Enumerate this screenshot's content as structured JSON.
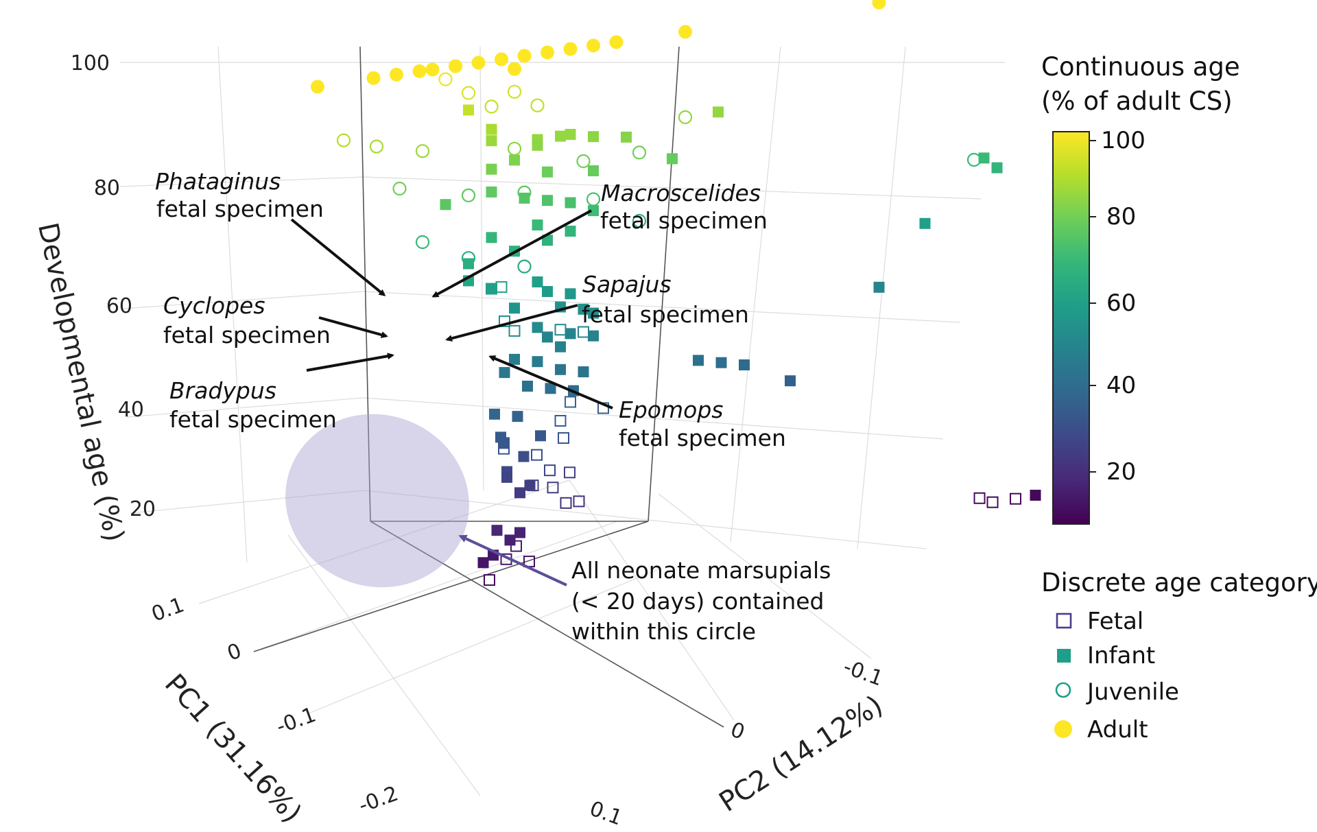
{
  "chart_data": {
    "type": "scatter",
    "dimensions": "3d",
    "zlabel": "Developmental age (%)",
    "xlabel": "PC1 (31.16%)",
    "ylabel": "PC2 (14.12%)",
    "z_ticks": [
      "100",
      "80",
      "60",
      "40",
      "20"
    ],
    "pc1_ticks": [
      "0.1",
      "0",
      "-0.1",
      "-0.2"
    ],
    "pc2_ticks": [
      "-0.1",
      "0",
      "0.1"
    ],
    "colorbar": {
      "title_line1": "Continuous age",
      "title_line2": "(% of adult CS)",
      "ticks": [
        "100",
        "80",
        "60",
        "40",
        "20"
      ],
      "palette": [
        "#440154",
        "#482878",
        "#3e4989",
        "#31688e",
        "#26828e",
        "#1f9e89",
        "#35b779",
        "#6ece58",
        "#b5de2b",
        "#fde725"
      ]
    },
    "legend": {
      "title": "Discrete age category",
      "items": [
        {
          "label": "Fetal",
          "marker": "open-square"
        },
        {
          "label": "Infant",
          "marker": "filled-square"
        },
        {
          "label": "Juvenile",
          "marker": "open-circle"
        },
        {
          "label": "Adult",
          "marker": "filled-circle"
        }
      ]
    },
    "annotations": [
      {
        "genus": "Phataginus",
        "text": "fetal specimen"
      },
      {
        "genus": "Macroscelides",
        "text": "fetal specimen"
      },
      {
        "genus": "Cyclopes",
        "text": "fetal specimen"
      },
      {
        "genus": "Sapajus",
        "text": "fetal specimen"
      },
      {
        "genus": "Bradypus",
        "text": "fetal specimen"
      },
      {
        "genus": "Epomops",
        "text": "fetal specimen"
      }
    ],
    "marsupial_note": [
      "All neonate marsupials",
      "(< 20 days) contained",
      "within this circle"
    ],
    "points": [
      {
        "c": "adult",
        "age": 100,
        "pc1": -0.02,
        "pc2": -0.14
      },
      {
        "c": "adult",
        "age": 100,
        "pc1": -0.05,
        "pc2": -0.12
      },
      {
        "c": "adult",
        "age": 100,
        "pc1": -0.06,
        "pc2": -0.11
      },
      {
        "c": "adult",
        "age": 100,
        "pc1": -0.07,
        "pc2": -0.1
      },
      {
        "c": "adult",
        "age": 100,
        "pc1": -0.07,
        "pc2": -0.09
      },
      {
        "c": "adult",
        "age": 100,
        "pc1": -0.08,
        "pc2": -0.08
      },
      {
        "c": "adult",
        "age": 100,
        "pc1": -0.08,
        "pc2": -0.08
      },
      {
        "c": "adult",
        "age": 100,
        "pc1": -0.09,
        "pc2": -0.07
      },
      {
        "c": "adult",
        "age": 100,
        "pc1": -0.1,
        "pc2": -0.06
      },
      {
        "c": "adult",
        "age": 100,
        "pc1": -0.11,
        "pc2": -0.05
      },
      {
        "c": "adult",
        "age": 100,
        "pc1": -0.11,
        "pc2": -0.05
      },
      {
        "c": "adult",
        "age": 100,
        "pc1": -0.12,
        "pc2": -0.04
      },
      {
        "c": "adult",
        "age": 100,
        "pc1": -0.13,
        "pc2": -0.03
      },
      {
        "c": "adult",
        "age": 100,
        "pc1": -0.14,
        "pc2": -0.02
      },
      {
        "c": "adult",
        "age": 100,
        "pc1": -0.15,
        "pc2": -0.01
      },
      {
        "c": "adult",
        "age": 100,
        "pc1": -0.18,
        "pc2": 0.02
      },
      {
        "c": "adult",
        "age": 100,
        "pc1": -0.27,
        "pc2": 0.1
      },
      {
        "c": "adult",
        "age": 98,
        "pc1": -0.1,
        "pc2": -0.05
      },
      {
        "c": "juvenile",
        "age": 98,
        "pc1": -0.07,
        "pc2": -0.08
      },
      {
        "c": "juvenile",
        "age": 95,
        "pc1": -0.08,
        "pc2": -0.07
      },
      {
        "c": "juvenile",
        "age": 94,
        "pc1": -0.1,
        "pc2": -0.05
      },
      {
        "c": "juvenile",
        "age": 92,
        "pc1": -0.09,
        "pc2": -0.06
      },
      {
        "c": "juvenile",
        "age": 91,
        "pc1": -0.11,
        "pc2": -0.04
      },
      {
        "c": "juvenile",
        "age": 90,
        "pc1": -0.02,
        "pc2": -0.12
      },
      {
        "c": "juvenile",
        "age": 88,
        "pc1": -0.04,
        "pc2": -0.11
      },
      {
        "c": "juvenile",
        "age": 86,
        "pc1": -0.06,
        "pc2": -0.09
      },
      {
        "c": "juvenile",
        "age": 85,
        "pc1": -0.18,
        "pc2": 0.02
      },
      {
        "c": "juvenile",
        "age": 84,
        "pc1": -0.1,
        "pc2": -0.05
      },
      {
        "c": "juvenile",
        "age": 80,
        "pc1": -0.13,
        "pc2": -0.02
      },
      {
        "c": "juvenile",
        "age": 80,
        "pc1": -0.16,
        "pc2": 0.0
      },
      {
        "c": "juvenile",
        "age": 80,
        "pc1": -0.05,
        "pc2": -0.1
      },
      {
        "c": "juvenile",
        "age": 77,
        "pc1": -0.08,
        "pc2": -0.07
      },
      {
        "c": "juvenile",
        "age": 76,
        "pc1": -0.11,
        "pc2": -0.05
      },
      {
        "c": "juvenile",
        "age": 73,
        "pc1": -0.14,
        "pc2": -0.02
      },
      {
        "c": "juvenile",
        "age": 70,
        "pc1": -0.06,
        "pc2": -0.09
      },
      {
        "c": "juvenile",
        "age": 68,
        "pc1": -0.16,
        "pc2": 0.0
      },
      {
        "c": "juvenile",
        "age": 66,
        "pc1": -0.08,
        "pc2": -0.07
      },
      {
        "c": "juvenile",
        "age": 63,
        "pc1": -0.11,
        "pc2": -0.05
      },
      {
        "c": "juvenile",
        "age": 70,
        "pc1": -0.3,
        "pc2": 0.15
      },
      {
        "c": "infant",
        "age": 92,
        "pc1": -0.08,
        "pc2": -0.07
      },
      {
        "c": "infant",
        "age": 88,
        "pc1": -0.09,
        "pc2": -0.06
      },
      {
        "c": "infant",
        "age": 85,
        "pc1": -0.11,
        "pc2": -0.04
      },
      {
        "c": "infant",
        "age": 84,
        "pc1": -0.11,
        "pc2": -0.04
      },
      {
        "c": "infant",
        "age": 85,
        "pc1": -0.13,
        "pc2": -0.03
      },
      {
        "c": "infant",
        "age": 85,
        "pc1": -0.12,
        "pc2": -0.03
      },
      {
        "c": "infant",
        "age": 84,
        "pc1": -0.14,
        "pc2": -0.02
      },
      {
        "c": "infant",
        "age": 86,
        "pc1": -0.09,
        "pc2": -0.06
      },
      {
        "c": "infant",
        "age": 83,
        "pc1": -0.16,
        "pc2": -0.01
      },
      {
        "c": "infant",
        "age": 85,
        "pc1": -0.2,
        "pc2": 0.03
      },
      {
        "c": "infant",
        "age": 82,
        "pc1": -0.1,
        "pc2": -0.05
      },
      {
        "c": "infant",
        "age": 81,
        "pc1": -0.09,
        "pc2": -0.06
      },
      {
        "c": "infant",
        "age": 79,
        "pc1": -0.12,
        "pc2": -0.04
      },
      {
        "c": "infant",
        "age": 78,
        "pc1": -0.14,
        "pc2": -0.02
      },
      {
        "c": "infant",
        "age": 78,
        "pc1": -0.18,
        "pc2": 0.01
      },
      {
        "c": "infant",
        "age": 77,
        "pc1": -0.09,
        "pc2": -0.06
      },
      {
        "c": "infant",
        "age": 76,
        "pc1": -0.07,
        "pc2": -0.08
      },
      {
        "c": "infant",
        "age": 75,
        "pc1": -0.11,
        "pc2": -0.05
      },
      {
        "c": "infant",
        "age": 74,
        "pc1": -0.12,
        "pc2": -0.04
      },
      {
        "c": "infant",
        "age": 73,
        "pc1": -0.13,
        "pc2": -0.03
      },
      {
        "c": "infant",
        "age": 71,
        "pc1": -0.14,
        "pc2": -0.02
      },
      {
        "c": "infant",
        "age": 70,
        "pc1": -0.11,
        "pc2": -0.04
      },
      {
        "c": "infant",
        "age": 69,
        "pc1": -0.09,
        "pc2": -0.06
      },
      {
        "c": "infant",
        "age": 68,
        "pc1": -0.13,
        "pc2": -0.03
      },
      {
        "c": "infant",
        "age": 67,
        "pc1": -0.12,
        "pc2": -0.04
      },
      {
        "c": "infant",
        "age": 66,
        "pc1": -0.1,
        "pc2": -0.05
      },
      {
        "c": "infant",
        "age": 65,
        "pc1": -0.08,
        "pc2": -0.07
      },
      {
        "c": "infant",
        "age": 70,
        "pc1": -0.31,
        "pc2": 0.15
      },
      {
        "c": "infant",
        "age": 68,
        "pc1": -0.31,
        "pc2": 0.16
      },
      {
        "c": "infant",
        "age": 60,
        "pc1": -0.29,
        "pc2": 0.12
      },
      {
        "c": "infant",
        "age": 50,
        "pc1": -0.27,
        "pc2": 0.1
      },
      {
        "c": "infant",
        "age": 62,
        "pc1": -0.08,
        "pc2": -0.07
      },
      {
        "c": "infant",
        "age": 60,
        "pc1": -0.09,
        "pc2": -0.06
      },
      {
        "c": "infant",
        "age": 60,
        "pc1": -0.11,
        "pc2": -0.04
      },
      {
        "c": "infant",
        "age": 58,
        "pc1": -0.12,
        "pc2": -0.04
      },
      {
        "c": "infant",
        "age": 57,
        "pc1": -0.13,
        "pc2": -0.03
      },
      {
        "c": "infant",
        "age": 56,
        "pc1": -0.1,
        "pc2": -0.05
      },
      {
        "c": "infant",
        "age": 55,
        "pc1": -0.12,
        "pc2": -0.03
      },
      {
        "c": "infant",
        "age": 54,
        "pc1": -0.13,
        "pc2": -0.02
      },
      {
        "c": "infant",
        "age": 53,
        "pc1": -0.14,
        "pc2": -0.02
      },
      {
        "c": "infant",
        "age": 52,
        "pc1": -0.11,
        "pc2": -0.04
      },
      {
        "c": "infant",
        "age": 50,
        "pc1": -0.12,
        "pc2": -0.04
      },
      {
        "c": "infant",
        "age": 50,
        "pc1": -0.13,
        "pc2": -0.03
      },
      {
        "c": "infant",
        "age": 49,
        "pc1": -0.14,
        "pc2": -0.02
      },
      {
        "c": "infant",
        "age": 48,
        "pc1": -0.12,
        "pc2": -0.03
      },
      {
        "c": "infant",
        "age": 47,
        "pc1": -0.1,
        "pc2": -0.05
      },
      {
        "c": "infant",
        "age": 46,
        "pc1": -0.11,
        "pc2": -0.04
      },
      {
        "c": "infant",
        "age": 45,
        "pc1": -0.09,
        "pc2": -0.05
      },
      {
        "c": "infant",
        "age": 44,
        "pc1": -0.12,
        "pc2": -0.03
      },
      {
        "c": "infant",
        "age": 43,
        "pc1": -0.13,
        "pc2": -0.02
      },
      {
        "c": "infant",
        "age": 42,
        "pc1": -0.1,
        "pc2": -0.04
      },
      {
        "c": "infant",
        "age": 41,
        "pc1": -0.11,
        "pc2": -0.03
      },
      {
        "c": "infant",
        "age": 40,
        "pc1": -0.12,
        "pc2": -0.02
      },
      {
        "c": "infant",
        "age": 42,
        "pc1": -0.18,
        "pc2": 0.03
      },
      {
        "c": "infant",
        "age": 41,
        "pc1": -0.19,
        "pc2": 0.04
      },
      {
        "c": "infant",
        "age": 40,
        "pc1": -0.2,
        "pc2": 0.05
      },
      {
        "c": "infant",
        "age": 36,
        "pc1": -0.22,
        "pc2": 0.07
      },
      {
        "c": "infant",
        "age": 38,
        "pc1": -0.08,
        "pc2": -0.05
      },
      {
        "c": "infant",
        "age": 37,
        "pc1": -0.09,
        "pc2": -0.04
      },
      {
        "c": "infant",
        "age": 34,
        "pc1": -0.06,
        "pc2": -0.03
      },
      {
        "c": "infant",
        "age": 33,
        "pc1": -0.1,
        "pc2": -0.03
      },
      {
        "c": "infant",
        "age": 33,
        "pc1": -0.05,
        "pc2": -0.02
      },
      {
        "c": "infant",
        "age": 30,
        "pc1": -0.07,
        "pc2": -0.02
      },
      {
        "c": "infant",
        "age": 28,
        "pc1": -0.04,
        "pc2": -0.01
      },
      {
        "c": "infant",
        "age": 27,
        "pc1": -0.04,
        "pc2": -0.01
      },
      {
        "c": "infant",
        "age": 25,
        "pc1": -0.05,
        "pc2": 0.0
      },
      {
        "c": "infant",
        "age": 24,
        "pc1": -0.04,
        "pc2": 0.0
      },
      {
        "c": "infant",
        "age": 14,
        "pc1": 0.0,
        "pc2": 0.01
      },
      {
        "c": "infant",
        "age": 13,
        "pc1": 0.01,
        "pc2": 0.01
      },
      {
        "c": "infant",
        "age": 18,
        "pc1": -0.03,
        "pc2": -0.01
      },
      {
        "c": "infant",
        "age": 17,
        "pc1": -0.04,
        "pc2": 0.0
      },
      {
        "c": "infant",
        "age": 16,
        "pc1": -0.03,
        "pc2": 0.0
      },
      {
        "c": "infant",
        "age": 10,
        "pc1": -0.27,
        "pc2": 0.22
      },
      {
        "c": "fetal",
        "age": 60,
        "pc1": -0.09,
        "pc2": -0.06
      },
      {
        "c": "fetal",
        "age": 60,
        "pc1": -0.1,
        "pc2": -0.06
      },
      {
        "c": "fetal",
        "age": 54,
        "pc1": -0.09,
        "pc2": -0.05
      },
      {
        "c": "fetal",
        "age": 52,
        "pc1": -0.1,
        "pc2": -0.05
      },
      {
        "c": "fetal",
        "age": 50,
        "pc1": -0.13,
        "pc2": -0.02
      },
      {
        "c": "fetal",
        "age": 51,
        "pc1": -0.12,
        "pc2": -0.03
      },
      {
        "c": "fetal",
        "age": 38,
        "pc1": -0.13,
        "pc2": -0.03
      },
      {
        "c": "fetal",
        "age": 36,
        "pc1": -0.15,
        "pc2": -0.02
      },
      {
        "c": "fetal",
        "age": 35,
        "pc1": -0.12,
        "pc2": -0.03
      },
      {
        "c": "fetal",
        "age": 33,
        "pc1": -0.05,
        "pc2": -0.02
      },
      {
        "c": "fetal",
        "age": 32,
        "pc1": -0.05,
        "pc2": -0.02
      },
      {
        "c": "fetal",
        "age": 32,
        "pc1": -0.11,
        "pc2": -0.02
      },
      {
        "c": "fetal",
        "age": 30,
        "pc1": -0.07,
        "pc2": -0.01
      },
      {
        "c": "fetal",
        "age": 27,
        "pc1": -0.07,
        "pc2": 0.0
      },
      {
        "c": "fetal",
        "age": 26,
        "pc1": -0.09,
        "pc2": 0.0
      },
      {
        "c": "fetal",
        "age": 25,
        "pc1": -0.04,
        "pc2": 0.01
      },
      {
        "c": "fetal",
        "age": 24,
        "pc1": -0.06,
        "pc2": 0.01
      },
      {
        "c": "fetal",
        "age": 21,
        "pc1": -0.06,
        "pc2": 0.02
      },
      {
        "c": "fetal",
        "age": 21,
        "pc1": -0.06,
        "pc2": 0.03
      },
      {
        "c": "fetal",
        "age": 15,
        "pc1": -0.01,
        "pc2": 0.02
      },
      {
        "c": "fetal",
        "age": 13,
        "pc1": 0.0,
        "pc2": 0.02
      },
      {
        "c": "fetal",
        "age": 10,
        "pc1": 0.03,
        "pc2": 0.03
      },
      {
        "c": "fetal",
        "age": 12,
        "pc1": -0.01,
        "pc2": 0.03
      },
      {
        "c": "fetal",
        "age": 11,
        "pc1": -0.24,
        "pc2": 0.2
      },
      {
        "c": "fetal",
        "age": 10,
        "pc1": -0.24,
        "pc2": 0.21
      },
      {
        "c": "fetal",
        "age": 10,
        "pc1": -0.25,
        "pc2": 0.22
      }
    ]
  }
}
